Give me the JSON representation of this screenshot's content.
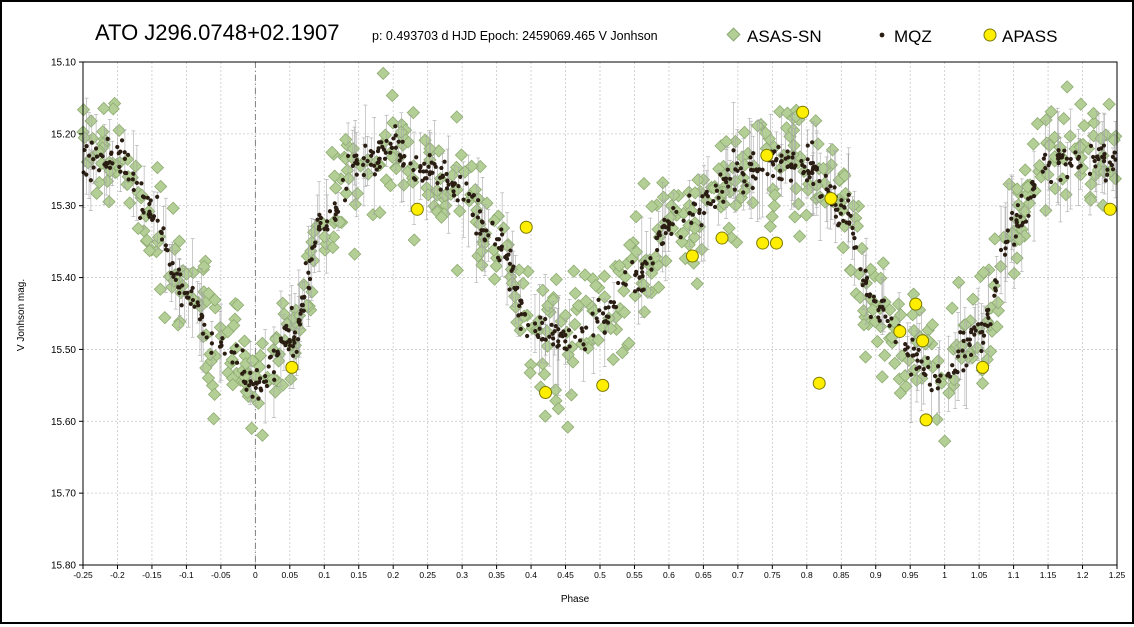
{
  "header": {
    "title": "ATO J296.0748+02.1907",
    "info": "p: 0.493703 d  HJD  Epoch: 2459069.465   V Jonhson"
  },
  "legend": {
    "placement": "top-right",
    "items": [
      {
        "label": "ASAS-SN",
        "marker": "diamond",
        "color": "#b3cf96"
      },
      {
        "label": "MQZ",
        "marker": "dot",
        "color": "#2a1d12"
      },
      {
        "label": "APASS",
        "marker": "circle",
        "color": "#ffee00"
      }
    ]
  },
  "chart_data": {
    "type": "scatter",
    "xlabel": "Phase",
    "ylabel": "V Jonhson mag.",
    "xlim": [
      -0.25,
      1.25
    ],
    "ylim": [
      15.8,
      15.1
    ],
    "y_inverted": true,
    "grid": true,
    "x_ticks": [
      "-0.25",
      "-0.2",
      "-0.15",
      "-0.1",
      "-0.05",
      "0",
      "0.05",
      "0.1",
      "0.15",
      "0.2",
      "0.25",
      "0.3",
      "0.35",
      "0.4",
      "0.45",
      "0.5",
      "0.55",
      "0.6",
      "0.65",
      "0.7",
      "0.75",
      "0.8",
      "0.85",
      "0.9",
      "0.95",
      "1",
      "1.05",
      "1.1",
      "1.15",
      "1.2",
      "1.25"
    ],
    "y_ticks": [
      "15.10",
      "15.20",
      "15.30",
      "15.40",
      "15.50",
      "15.60",
      "15.70",
      "15.80"
    ],
    "series": [
      {
        "name": "APASS",
        "x": [
          0.053,
          0.235,
          0.393,
          0.421,
          0.504,
          0.634,
          0.677,
          0.736,
          0.742,
          0.756,
          0.794,
          0.818,
          0.835,
          0.935,
          0.958,
          0.968,
          0.973,
          1.055,
          1.24
        ],
        "y": [
          15.525,
          15.305,
          15.33,
          15.56,
          15.55,
          15.37,
          15.345,
          15.352,
          15.23,
          15.352,
          15.17,
          15.547,
          15.29,
          15.475,
          15.437,
          15.488,
          15.598,
          15.525,
          15.305
        ]
      }
    ],
    "series_trend": [
      {
        "name": "MQZ",
        "x": [
          -0.25,
          -0.2,
          -0.15,
          -0.1,
          -0.05,
          0.0,
          0.05,
          0.1,
          0.15,
          0.2,
          0.25,
          0.3,
          0.35,
          0.4,
          0.45,
          0.5,
          0.55,
          0.6,
          0.65,
          0.7,
          0.75,
          0.8,
          0.85,
          0.9,
          0.95,
          1.0,
          1.05,
          1.1,
          1.15,
          1.2,
          1.25
        ],
        "y": [
          15.24,
          15.23,
          15.31,
          15.42,
          15.5,
          15.55,
          15.49,
          15.32,
          15.24,
          15.22,
          15.25,
          15.28,
          15.35,
          15.47,
          15.49,
          15.46,
          15.4,
          15.33,
          15.3,
          15.26,
          15.24,
          15.24,
          15.3,
          15.44,
          15.51,
          15.54,
          15.48,
          15.33,
          15.24,
          15.23,
          15.24
        ]
      }
    ]
  }
}
